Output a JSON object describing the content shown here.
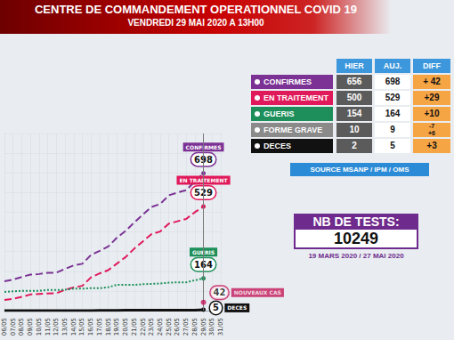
{
  "header": {
    "title": "CENTRE DE COMMANDEMENT OPERATIONNEL COVID 19",
    "subtitle": "VENDREDI 29 MAI 2020 A 13H00"
  },
  "table": {
    "columns": [
      "HIER",
      "AUJ.",
      "DIFF"
    ],
    "rows": [
      {
        "label": "CONFIRMES",
        "color": "#7b3294",
        "hier": 656,
        "auj": 698,
        "diff": [
          "+ 42"
        ]
      },
      {
        "label": "EN TRAITEMENT",
        "color": "#e0195a",
        "hier": 500,
        "auj": 529,
        "diff": [
          "+29"
        ]
      },
      {
        "label": "GUERIS",
        "color": "#1e8f5a",
        "hier": 154,
        "auj": 164,
        "diff": [
          "+10"
        ]
      },
      {
        "label": "FORME GRAVE",
        "color": "#8a8a8a",
        "hier": 10,
        "auj": 9,
        "diff": [
          "-7",
          "+6"
        ]
      },
      {
        "label": "DECES",
        "color": "#111111",
        "hier": 2,
        "auj": 5,
        "diff": [
          "+3"
        ]
      }
    ]
  },
  "source": "SOURCE MSANP / IPM / OMS",
  "tests": {
    "label": "NB DE TESTS:",
    "value": 10249,
    "period": "19 MARS 2020 / 27 MAI 2020"
  },
  "chart_data": {
    "type": "line",
    "categories": [
      "06/05",
      "07/05",
      "08/05",
      "09/05",
      "10/05",
      "11/05",
      "12/05",
      "13/05",
      "14/05",
      "15/05",
      "16/05",
      "17/05",
      "18/05",
      "19/05",
      "20/05",
      "21/05",
      "22/05",
      "23/05",
      "24/05",
      "25/05",
      "26/05",
      "27/05",
      "28/05",
      "29/05",
      "30/05",
      "31/05"
    ],
    "series": [
      {
        "name": "CONFIRMES",
        "color": "#7b3294",
        "line_style": "dashed",
        "marker": "circle",
        "values": [
          149,
          158,
          171,
          183,
          186,
          192,
          193,
          212,
          230,
          238,
          283,
          304,
          326,
          371,
          405,
          448,
          488,
          527,
          542,
          586,
          600,
          612,
          656,
          698,
          null,
          null
        ]
      },
      {
        "name": "EN TRAITEMENT",
        "color": "#e0195a",
        "line_style": "dashed",
        "marker": "circle",
        "values": [
          54,
          60,
          70,
          82,
          85,
          87,
          88,
          106,
          118,
          126,
          169,
          189,
          206,
          239,
          272,
          315,
          352,
          389,
          402,
          442,
          454,
          466,
          500,
          529,
          null,
          null
        ]
      },
      {
        "name": "GUERIS",
        "color": "#1e8f5a",
        "line_style": "dotted",
        "marker": "circle",
        "values": [
          95,
          98,
          101,
          101,
          101,
          105,
          105,
          106,
          112,
          112,
          114,
          114,
          119,
          131,
          131,
          131,
          134,
          136,
          138,
          142,
          144,
          144,
          154,
          164,
          null,
          null
        ]
      },
      {
        "name": "DECES",
        "color": "#111111",
        "line_style": "solid",
        "marker": "circle",
        "values": [
          0,
          0,
          0,
          0,
          0,
          0,
          0,
          0,
          0,
          0,
          0,
          1,
          1,
          1,
          2,
          2,
          2,
          2,
          2,
          2,
          2,
          2,
          2,
          5,
          null,
          null
        ]
      },
      {
        "name": "NOUVEAUX CAS",
        "type": "scatter",
        "color": "#c2185b",
        "marker": "circle",
        "values": [
          null,
          null,
          null,
          null,
          null,
          null,
          null,
          null,
          null,
          null,
          null,
          null,
          null,
          null,
          null,
          null,
          null,
          null,
          null,
          null,
          null,
          null,
          null,
          42,
          null,
          null
        ]
      }
    ],
    "ylim": [
      0,
      900
    ],
    "yticks": [
      0,
      100,
      200,
      300,
      400,
      500,
      600,
      700,
      800,
      900
    ],
    "grid": true,
    "tick_labels": "x"
  }
}
